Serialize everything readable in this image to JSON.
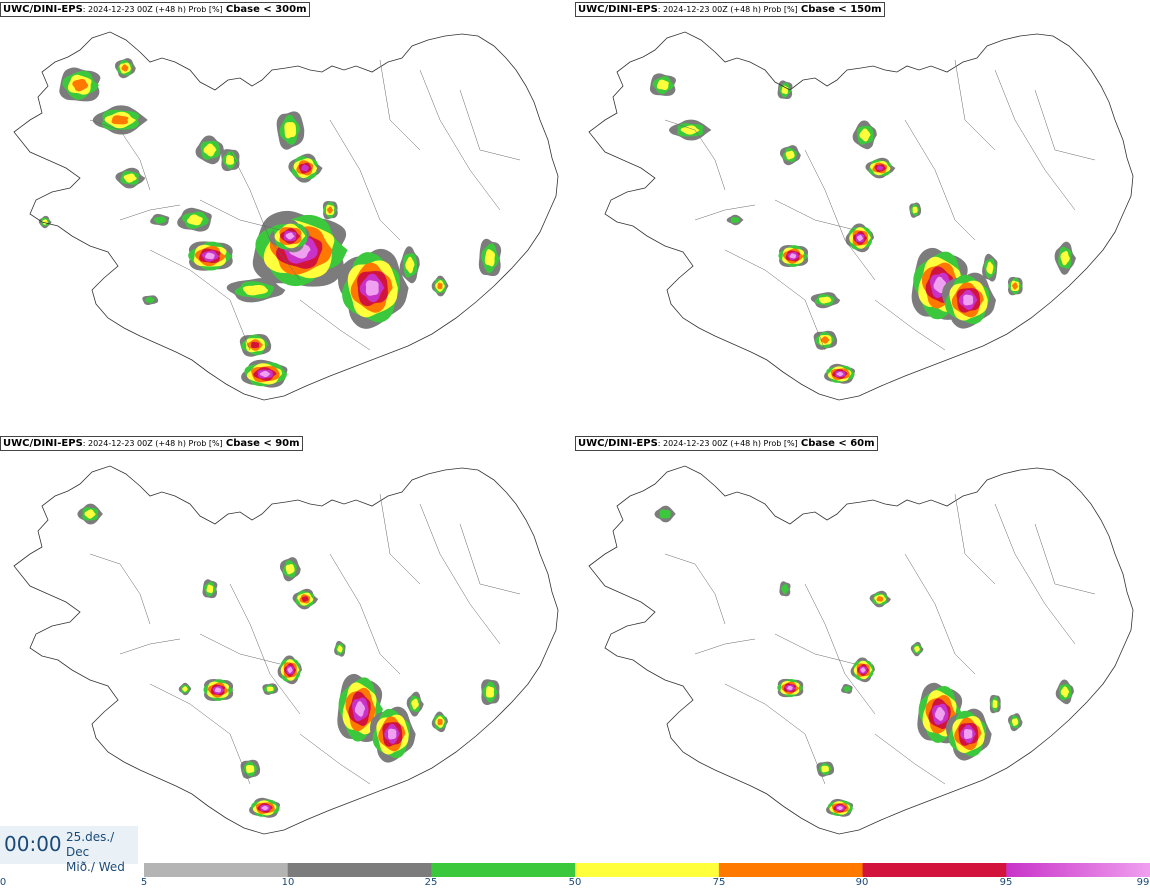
{
  "panels": [
    {
      "model": "UWC/DINI-EPS",
      "meta": ": 2024-12-23 00Z (+48 h) Prob [%]",
      "threshold": "Cbase < 300m"
    },
    {
      "model": "UWC/DINI-EPS",
      "meta": ": 2024-12-23 00Z (+48 h) Prob [%]",
      "threshold": "Cbase < 150m"
    },
    {
      "model": "UWC/DINI-EPS",
      "meta": ": 2024-12-23 00Z (+48 h) Prob [%]",
      "threshold": "Cbase < 90m"
    },
    {
      "model": "UWC/DINI-EPS",
      "meta": ": 2024-12-23 00Z (+48 h) Prob [%]",
      "threshold": "Cbase < 60m"
    }
  ],
  "time": {
    "clock": "00:00",
    "date_line1": "25.des./ Dec",
    "date_line2": "Mið./ Wed"
  },
  "legend": {
    "ticks": [
      "0",
      "5",
      "10",
      "25",
      "50",
      "75",
      "90",
      "95",
      "99"
    ],
    "bands": [
      {
        "from": 5,
        "to": 10,
        "color": "#b4b4b4"
      },
      {
        "from": 10,
        "to": 25,
        "color": "#7c7c7c"
      },
      {
        "from": 25,
        "to": 50,
        "color": "#3cc83c"
      },
      {
        "from": 50,
        "to": 75,
        "color": "#ffff3c"
      },
      {
        "from": 75,
        "to": 90,
        "color": "#ff7800"
      },
      {
        "from": 90,
        "to": 95,
        "color": "#d2143c"
      },
      {
        "from": 95,
        "to": 99,
        "color": "#c832c8"
      }
    ],
    "top_color": "#f0a0f0"
  }
}
